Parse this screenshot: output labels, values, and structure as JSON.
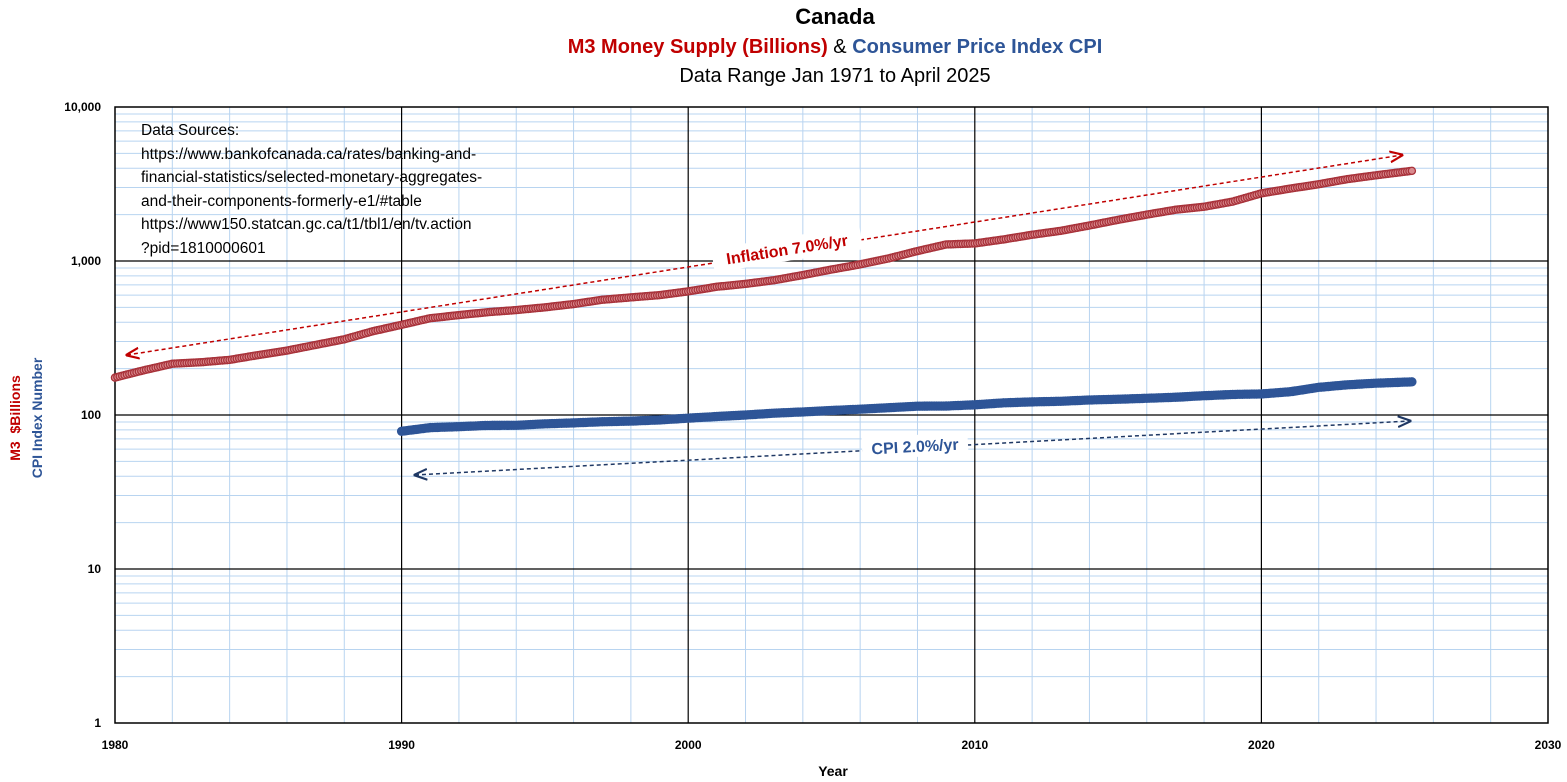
{
  "chart_data": {
    "type": "scatter",
    "title": "Canada",
    "subtitle": {
      "part1": "M3 Money Supply (Billions)",
      "part2": " & ",
      "part3": "Consumer Price Index CPI"
    },
    "data_range": "Data Range Jan 1971 to April 2025",
    "xlabel": "Year",
    "ylabel_m3": "M3  $Billions",
    "ylabel_cpi": "CPI Index Number",
    "xlim": [
      1980,
      2030
    ],
    "ylim": [
      1,
      10000
    ],
    "y_scale": "log",
    "x_ticks": [
      "1980",
      "1990",
      "2000",
      "2010",
      "2020",
      "2030"
    ],
    "y_ticks": [
      "1",
      "10",
      "100",
      "1,000",
      "10,000"
    ],
    "grid": true,
    "colors": {
      "m3": "#c0504d",
      "m3_text": "#c00000",
      "cpi": "#2e5597",
      "grid_minor": "#b8d4f0",
      "grid_major": "#000000"
    },
    "sources": {
      "heading": "Data Sources:",
      "lines": [
        "https://www.bankofcanada.ca/rates/banking-and-",
        "financial-statistics/selected-monetary-aggregates-",
        "and-their-components-formerly-e1/#table",
        "https://www150.statcan.gc.ca/t1/tbl1/en/tv.action",
        "?pid=1810000601"
      ]
    },
    "annotations": {
      "m3_trend": "Inflation 7.0%/yr",
      "cpi_trend": "CPI 2.0%/yr"
    },
    "series": [
      {
        "key": "m3",
        "x": [
          1980.0,
          1981.0,
          1982.0,
          1983.0,
          1984.0,
          1985.0,
          1986.0,
          1987.0,
          1988.0,
          1989.0,
          1990.0,
          1991.0,
          1992.0,
          1993.0,
          1994.0,
          1995.0,
          1996.0,
          1997.0,
          1998.0,
          1999.0,
          2000.0,
          2001.0,
          2002.0,
          2003.0,
          2004.0,
          2005.0,
          2006.0,
          2007.0,
          2008.0,
          2009.0,
          2010.0,
          2011.0,
          2012.0,
          2013.0,
          2014.0,
          2015.0,
          2016.0,
          2017.0,
          2018.0,
          2019.0,
          2020.0,
          2021.0,
          2022.0,
          2023.0,
          2024.0,
          2025.25
        ],
        "y": [
          175,
          195,
          215,
          220,
          228,
          245,
          262,
          285,
          310,
          350,
          385,
          425,
          445,
          465,
          480,
          500,
          525,
          560,
          580,
          600,
          635,
          680,
          710,
          750,
          810,
          880,
          950,
          1040,
          1160,
          1280,
          1300,
          1380,
          1480,
          1570,
          1700,
          1850,
          2000,
          2150,
          2250,
          2430,
          2750,
          2950,
          3150,
          3400,
          3600,
          3850
        ]
      },
      {
        "key": "cpi",
        "x": [
          1990.0,
          1991.0,
          1992.0,
          1993.0,
          1994.0,
          1995.0,
          1996.0,
          1997.0,
          1998.0,
          1999.0,
          2000.0,
          2001.0,
          2002.0,
          2003.0,
          2004.0,
          2005.0,
          2006.0,
          2007.0,
          2008.0,
          2009.0,
          2010.0,
          2011.0,
          2012.0,
          2013.0,
          2014.0,
          2015.0,
          2016.0,
          2017.0,
          2018.0,
          2019.0,
          2020.0,
          2021.0,
          2022.0,
          2023.0,
          2024.0,
          2025.25
        ],
        "y": [
          78.4,
          82.8,
          84.0,
          85.6,
          85.7,
          87.6,
          88.9,
          90.4,
          91.3,
          92.9,
          95.4,
          97.8,
          100.0,
          102.8,
          104.7,
          107.0,
          109.1,
          111.5,
          114.1,
          114.4,
          116.5,
          119.9,
          121.7,
          122.8,
          125.2,
          126.6,
          128.4,
          130.4,
          133.4,
          136.0,
          137.0,
          141.6,
          151.2,
          157.1,
          160.9,
          164.2
        ]
      }
    ]
  }
}
